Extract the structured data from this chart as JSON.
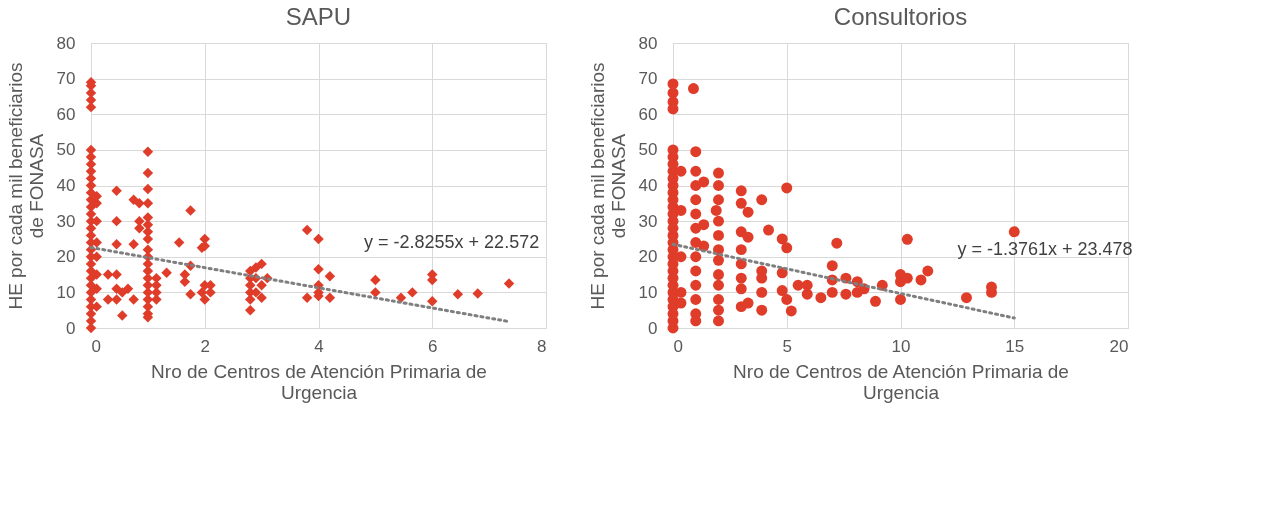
{
  "chart_data": [
    {
      "type": "scatter",
      "title": "SAPU",
      "xlabel": "Nro de Centros de Atención Primaria de Urgencia",
      "ylabel": "HE por cada mil beneficiarios de FONASA",
      "xlim": [
        0,
        8
      ],
      "xticks": [
        0,
        2,
        4,
        6,
        8
      ],
      "ylim": [
        0,
        80
      ],
      "yticks": [
        0,
        10,
        20,
        30,
        40,
        50,
        60,
        70,
        80
      ],
      "grid": true,
      "annotations": [
        "y = -2.8255x + 22.572"
      ],
      "series": [
        {
          "color": "#e03c2a",
          "marker": "diamond",
          "x": [
            0,
            0,
            0,
            0,
            0,
            0,
            0,
            0,
            0,
            0,
            0,
            0,
            0,
            0,
            0,
            0,
            0,
            0,
            0,
            0,
            0,
            0,
            0,
            0,
            0,
            0,
            0,
            0,
            0,
            0,
            0,
            0.1,
            0.1,
            0.1,
            0.1,
            0.1,
            0.1,
            0.1,
            0.1,
            0.3,
            0.3,
            0.45,
            0.45,
            0.45,
            0.45,
            0.45,
            0.45,
            0.55,
            0.55,
            0.65,
            0.75,
            0.75,
            0.75,
            0.85,
            0.85,
            0.85,
            1,
            1,
            1,
            1,
            1,
            1,
            1,
            1,
            1,
            1,
            1,
            1,
            1,
            1,
            1,
            1,
            1,
            1,
            1,
            1.15,
            1.15,
            1.15,
            1.15,
            1.33,
            1.55,
            1.65,
            1.65,
            1.75,
            1.75,
            1.75,
            1.95,
            1.95,
            2,
            2,
            2,
            2,
            2.1,
            2.1,
            2.8,
            2.8,
            2.8,
            2.8,
            2.8,
            2.8,
            2.9,
            2.9,
            2.9,
            3,
            3,
            3,
            3.1,
            3.8,
            3.8,
            4,
            4,
            4,
            4,
            4,
            4.2,
            4.2,
            5,
            5,
            5.45,
            5.65,
            6,
            6,
            6,
            6.45,
            6.8,
            7.35
          ],
          "values": [
            0,
            2,
            4,
            6,
            8,
            10,
            12,
            14,
            16,
            18,
            20,
            22,
            24,
            26,
            28,
            30,
            32,
            34,
            36,
            38,
            40,
            42,
            44,
            46,
            48,
            50,
            62,
            64,
            66,
            68,
            69,
            6,
            11,
            15,
            20,
            24,
            30,
            35,
            37,
            8,
            15,
            15,
            8,
            38.5,
            30,
            23.5,
            11,
            3.5,
            10,
            11,
            8,
            23.5,
            36,
            35,
            28,
            30,
            49.5,
            43.5,
            39,
            35,
            31,
            29,
            27,
            25,
            22,
            20,
            18,
            16,
            14,
            12,
            10,
            8,
            6,
            4,
            3,
            8,
            10,
            12,
            14,
            15.5,
            24,
            15,
            13,
            33,
            17.5,
            9.5,
            22.5,
            10,
            25,
            23,
            12,
            8,
            10,
            12,
            5,
            8,
            10,
            12,
            14,
            16,
            10,
            14,
            17,
            8.5,
            12,
            18,
            14,
            27.5,
            8.5,
            25,
            16.5,
            12,
            10,
            9,
            14.5,
            8.5,
            13.5,
            10,
            8.5,
            10,
            15,
            13.5,
            7.5,
            9.5,
            9.7,
            12.5
          ]
        },
        {
          "type": "line",
          "color": "#7f7f7f",
          "line_style": "dotted",
          "x": [
            0,
            7.35
          ],
          "values": [
            22.6,
            1.8
          ]
        }
      ]
    },
    {
      "type": "scatter",
      "title": "Consultorios",
      "xlabel": "Nro de Centros de Atención Primaria de Urgencia",
      "ylabel": "HE por cada mil beneficiarios de FONASA",
      "xlim": [
        0,
        20
      ],
      "xticks": [
        0,
        5,
        10,
        15,
        20
      ],
      "ylim": [
        0,
        80
      ],
      "yticks": [
        0,
        10,
        20,
        30,
        40,
        50,
        60,
        70,
        80
      ],
      "grid": true,
      "annotations": [
        "y = -1.3761x + 23.478"
      ],
      "series": [
        {
          "color": "#e03c2a",
          "marker": "circle",
          "x": [
            0,
            0,
            0,
            0,
            0,
            0,
            0,
            0,
            0,
            0,
            0,
            0,
            0,
            0,
            0,
            0,
            0,
            0,
            0,
            0,
            0,
            0,
            0,
            0,
            0,
            0,
            0,
            0,
            0,
            0,
            0.35,
            0.35,
            0.35,
            0.35,
            0.35,
            0.9,
            1,
            1,
            1,
            1,
            1,
            1,
            1,
            1,
            1,
            1,
            1,
            1,
            1,
            1.35,
            1.35,
            1.35,
            1.9,
            2,
            2,
            2,
            2,
            2,
            2,
            2,
            2,
            2,
            2,
            2,
            2,
            3,
            3,
            3,
            3,
            3,
            3,
            3,
            3,
            3.3,
            3.3,
            3.3,
            3.9,
            3.9,
            3.9,
            3.9,
            3.9,
            4.2,
            4.8,
            4.8,
            4.8,
            5,
            5,
            5,
            5.2,
            5.5,
            5.9,
            5.9,
            6.5,
            7,
            7,
            7,
            7.2,
            7.6,
            7.6,
            8.1,
            8.1,
            8.4,
            8.9,
            9.2,
            10,
            10,
            10,
            10.3,
            10.3,
            10.9,
            11.2,
            12.9,
            14,
            14,
            15
          ],
          "values": [
            0,
            2,
            4,
            6,
            8,
            10,
            12,
            14,
            16,
            18,
            20,
            22,
            24,
            26,
            28,
            30,
            32,
            34,
            36,
            38,
            40,
            42,
            44,
            46,
            48,
            50,
            61.5,
            63.5,
            66,
            68.5,
            20,
            33,
            44,
            7,
            10,
            67.2,
            49.5,
            44,
            40,
            36,
            32,
            28,
            24,
            20,
            16,
            12,
            8,
            4,
            2,
            41,
            29,
            23,
            33,
            43.5,
            40,
            36,
            30,
            26,
            22,
            19,
            15,
            12,
            8,
            2,
            5,
            38.5,
            35,
            27,
            22,
            18,
            14,
            11,
            6,
            32.5,
            25.5,
            7,
            36,
            16,
            14,
            10,
            5,
            27.5,
            25,
            15.5,
            10.5,
            39.3,
            22.5,
            8,
            4.8,
            12,
            9.5,
            12,
            8.5,
            10,
            13.5,
            17.5,
            23.8,
            9.5,
            14,
            10,
            13,
            11,
            7.5,
            12,
            8,
            13,
            15,
            24.9,
            14,
            13.5,
            16,
            8.5,
            11.5,
            10,
            27
          ]
        },
        {
          "type": "line",
          "color": "#7f7f7f",
          "line_style": "dotted",
          "x": [
            0,
            15
          ],
          "values": [
            23.5,
            2.8
          ]
        }
      ]
    }
  ]
}
